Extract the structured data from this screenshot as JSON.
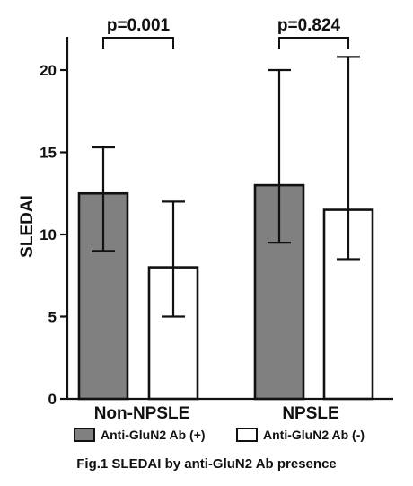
{
  "chart_data": {
    "type": "bar",
    "categories": [
      "Non-NPSLE",
      "NPSLE"
    ],
    "ylabel": "SLEDAI",
    "ylim": [
      0,
      22
    ],
    "yticks": [
      0,
      5,
      10,
      15,
      20
    ],
    "series": [
      {
        "name": "Anti-GluN2 Ab (+)",
        "values": [
          12.5,
          13.0
        ],
        "error_low": [
          9.0,
          9.5
        ],
        "error_high": [
          15.3,
          20.0
        ],
        "fill": "#808080"
      },
      {
        "name": "Anti-GluN2 Ab (-)",
        "values": [
          8.0,
          11.5
        ],
        "error_low": [
          5.0,
          8.5
        ],
        "error_high": [
          12.0,
          20.8
        ],
        "fill": "#ffffff"
      }
    ],
    "annotations": [
      "p=0.001",
      "p=0.824"
    ],
    "legend": "bottom",
    "grid": false,
    "caption": "Fig.1  SLEDAI by anti-GluN2 Ab presence"
  },
  "colors": {
    "axis": "#111111",
    "bar_outline": "#111111"
  }
}
